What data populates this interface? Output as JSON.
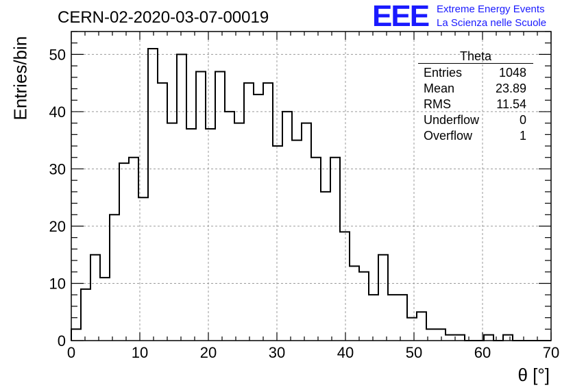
{
  "title": "CERN-02-2020-03-07-00019",
  "logo": {
    "mark": "EEE",
    "line1": "Extreme Energy Events",
    "line2": "La Scienza nelle Scuole"
  },
  "statbox": {
    "title": "Theta",
    "rows": [
      {
        "label": "Entries",
        "value": "1048"
      },
      {
        "label": "Mean",
        "value": "23.89"
      },
      {
        "label": "RMS",
        "value": "11.54"
      },
      {
        "label": "Underflow",
        "value": "0"
      },
      {
        "label": "Overflow",
        "value": "1"
      }
    ]
  },
  "chart_data": {
    "type": "histogram",
    "title": "CERN-02-2020-03-07-00019",
    "xlabel": "θ [°]",
    "ylabel": "Entries/bin",
    "xlim": [
      0,
      70
    ],
    "ylim": [
      0,
      54
    ],
    "bin_width": 1.4,
    "xticks": [
      0,
      10,
      20,
      30,
      40,
      50,
      60,
      70
    ],
    "yticks": [
      0,
      10,
      20,
      30,
      40,
      50
    ],
    "grid": true,
    "values": [
      2,
      9,
      15,
      11,
      22,
      31,
      32,
      25,
      51,
      45,
      38,
      50,
      37,
      47,
      37,
      47,
      40,
      38,
      45,
      43,
      45,
      34,
      40,
      35,
      38,
      32,
      26,
      32,
      19,
      13,
      12,
      8,
      15,
      8,
      8,
      4,
      5,
      2,
      2,
      1,
      1,
      0,
      0,
      1,
      0,
      1,
      0,
      0,
      0,
      0
    ]
  }
}
